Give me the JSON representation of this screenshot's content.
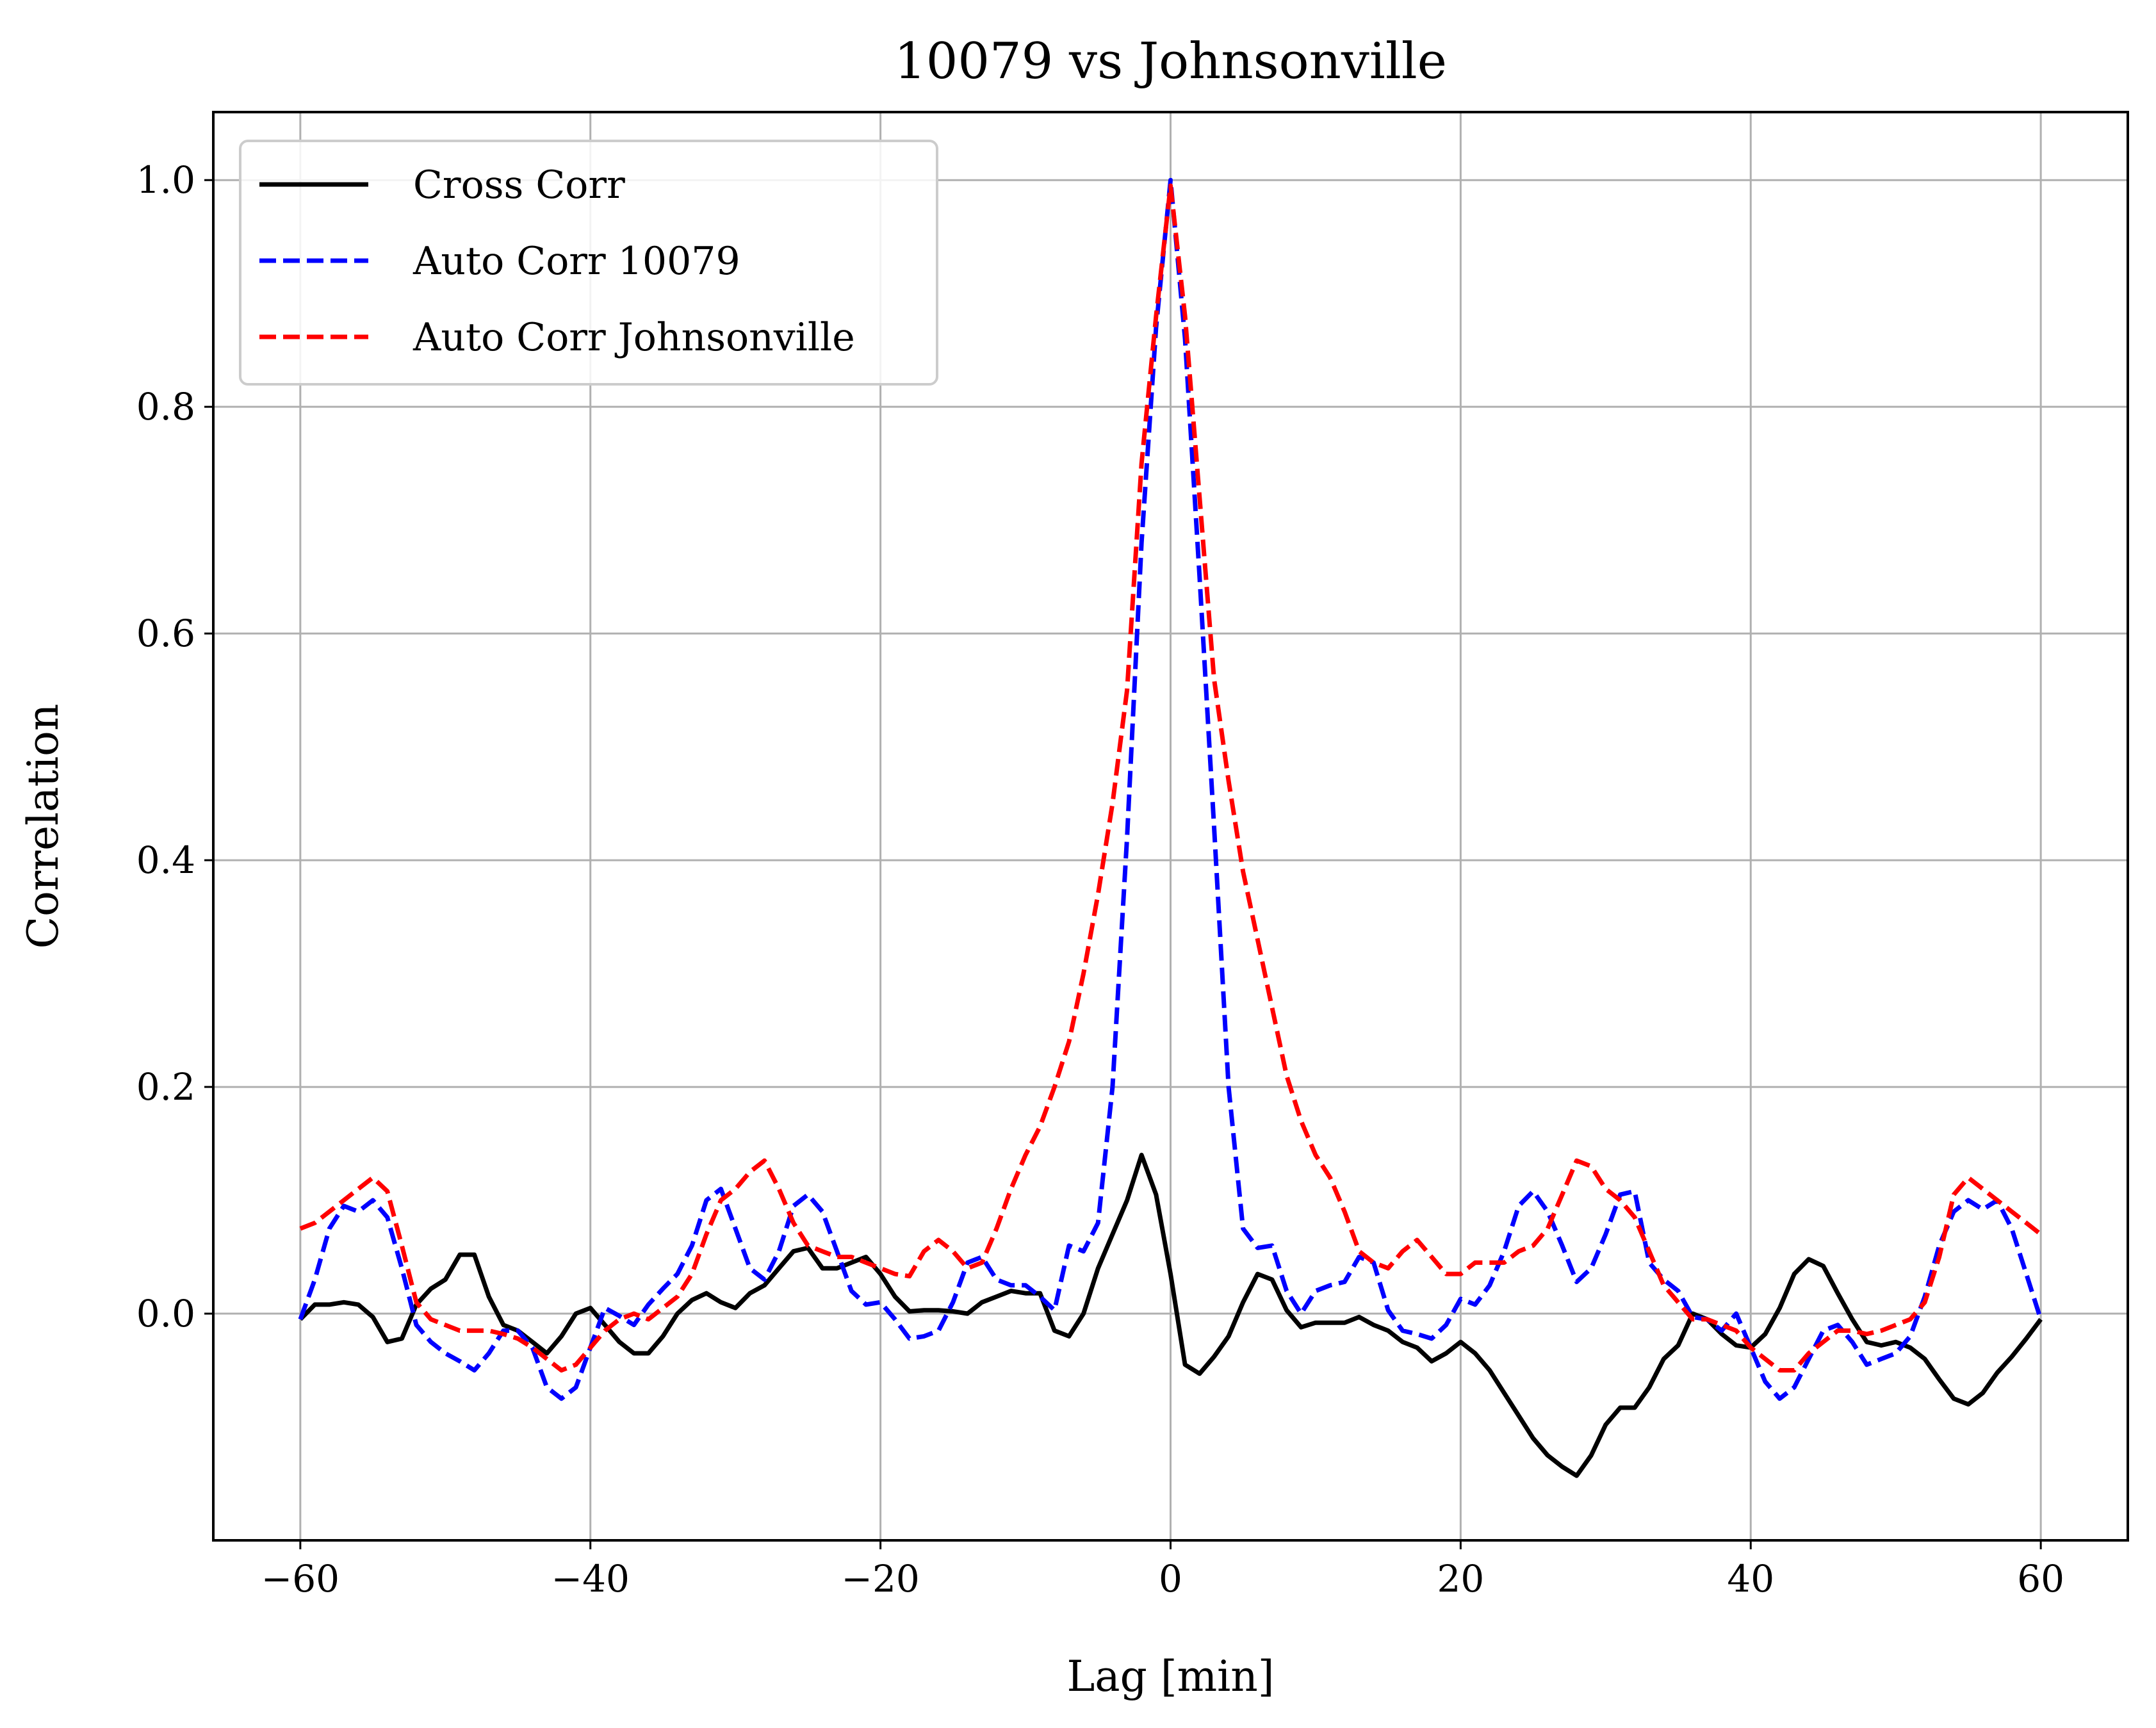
{
  "chart_data": {
    "type": "line",
    "title": "10079 vs Johnsonville",
    "xlabel": "Lag [min]",
    "ylabel": "Correlation",
    "xlim": [
      -66,
      66
    ],
    "ylim": [
      -0.2,
      1.06
    ],
    "xticks": [
      -60,
      -40,
      -20,
      0,
      20,
      40,
      60
    ],
    "xtick_labels": [
      "−60",
      "−40",
      "−20",
      "0",
      "20",
      "40",
      "60"
    ],
    "yticks": [
      0.0,
      0.2,
      0.4,
      0.6,
      0.8,
      1.0
    ],
    "ytick_labels": [
      "0.0",
      "0.2",
      "0.4",
      "0.6",
      "0.8",
      "1.0"
    ],
    "grid": true,
    "legend_position": "upper-left",
    "x": [
      -60,
      -59,
      -58,
      -57,
      -56,
      -55,
      -54,
      -53,
      -52,
      -51,
      -50,
      -49,
      -48,
      -47,
      -46,
      -45,
      -44,
      -43,
      -42,
      -41,
      -40,
      -39,
      -38,
      -37,
      -36,
      -35,
      -34,
      -33,
      -32,
      -31,
      -30,
      -29,
      -28,
      -27,
      -26,
      -25,
      -24,
      -23,
      -22,
      -21,
      -20,
      -19,
      -18,
      -17,
      -16,
      -15,
      -14,
      -13,
      -12,
      -11,
      -10,
      -9,
      -8,
      -7,
      -6,
      -5,
      -4,
      -3,
      -2,
      -1,
      0,
      1,
      2,
      3,
      4,
      5,
      6,
      7,
      8,
      9,
      10,
      11,
      12,
      13,
      14,
      15,
      16,
      17,
      18,
      19,
      20,
      21,
      22,
      23,
      24,
      25,
      26,
      27,
      28,
      29,
      30,
      31,
      32,
      33,
      34,
      35,
      36,
      37,
      38,
      39,
      40,
      41,
      42,
      43,
      44,
      45,
      46,
      47,
      48,
      49,
      50,
      51,
      52,
      53,
      54,
      55,
      56,
      57,
      58,
      59,
      60
    ],
    "series": [
      {
        "name": "Cross Corr",
        "color": "#000000",
        "style": "solid",
        "values": [
          -0.005,
          0.008,
          0.008,
          0.01,
          0.008,
          -0.003,
          -0.025,
          -0.022,
          0.008,
          0.022,
          0.03,
          0.052,
          0.052,
          0.015,
          -0.01,
          -0.015,
          -0.025,
          -0.035,
          -0.02,
          0.0,
          0.005,
          -0.01,
          -0.025,
          -0.035,
          -0.035,
          -0.02,
          0.0,
          0.012,
          0.018,
          0.01,
          0.005,
          0.018,
          0.025,
          0.04,
          0.055,
          0.058,
          0.04,
          0.04,
          0.045,
          0.05,
          0.035,
          0.015,
          0.002,
          0.003,
          0.003,
          0.002,
          0.0,
          0.01,
          0.015,
          0.02,
          0.018,
          0.018,
          -0.015,
          -0.02,
          0.0,
          0.04,
          0.07,
          0.1,
          0.14,
          0.105,
          0.035,
          -0.045,
          -0.053,
          -0.038,
          -0.02,
          0.01,
          0.035,
          0.03,
          0.003,
          -0.012,
          -0.008,
          -0.008,
          -0.008,
          -0.003,
          -0.01,
          -0.015,
          -0.025,
          -0.03,
          -0.042,
          -0.035,
          -0.025,
          -0.035,
          -0.05,
          -0.07,
          -0.09,
          -0.11,
          -0.125,
          -0.135,
          -0.143,
          -0.125,
          -0.098,
          -0.083,
          -0.083,
          -0.065,
          -0.04,
          -0.028,
          0.0,
          -0.005,
          -0.018,
          -0.028,
          -0.03,
          -0.018,
          0.005,
          0.035,
          0.048,
          0.042,
          0.018,
          -0.005,
          -0.025,
          -0.028,
          -0.025,
          -0.03,
          -0.04,
          -0.058,
          -0.075,
          -0.08,
          -0.07,
          -0.052,
          -0.038,
          -0.022,
          -0.005
        ]
      },
      {
        "name": "Auto Corr 10079",
        "color": "#0000ff",
        "style": "dashed",
        "values": [
          -0.005,
          0.03,
          0.075,
          0.095,
          0.09,
          0.1,
          0.085,
          0.04,
          -0.01,
          -0.025,
          -0.035,
          -0.042,
          -0.05,
          -0.035,
          -0.015,
          -0.015,
          -0.03,
          -0.065,
          -0.075,
          -0.065,
          -0.03,
          0.005,
          -0.002,
          -0.01,
          0.008,
          0.022,
          0.035,
          0.06,
          0.1,
          0.11,
          0.075,
          0.04,
          0.03,
          0.055,
          0.095,
          0.105,
          0.09,
          0.055,
          0.02,
          0.008,
          0.01,
          -0.005,
          -0.022,
          -0.02,
          -0.015,
          0.01,
          0.045,
          0.05,
          0.03,
          0.025,
          0.025,
          0.015,
          0.003,
          0.06,
          0.055,
          0.08,
          0.2,
          0.42,
          0.68,
          0.87,
          1.0,
          0.86,
          0.65,
          0.43,
          0.2,
          0.075,
          0.058,
          0.06,
          0.02,
          0.0,
          0.02,
          0.025,
          0.028,
          0.05,
          0.045,
          0.003,
          -0.015,
          -0.018,
          -0.022,
          -0.01,
          0.013,
          0.008,
          0.025,
          0.055,
          0.095,
          0.108,
          0.09,
          0.06,
          0.028,
          0.04,
          0.07,
          0.105,
          0.108,
          0.045,
          0.03,
          0.02,
          -0.003,
          -0.005,
          -0.015,
          0.0,
          -0.03,
          -0.06,
          -0.075,
          -0.065,
          -0.04,
          -0.015,
          -0.01,
          -0.025,
          -0.045,
          -0.04,
          -0.035,
          -0.02,
          0.015,
          0.06,
          0.09,
          0.1,
          0.092,
          0.1,
          0.075,
          0.035,
          -0.005
        ]
      },
      {
        "name": "Auto Corr Johnsonville",
        "color": "#ff0000",
        "style": "dashed",
        "values": [
          0.075,
          0.08,
          0.09,
          0.1,
          0.11,
          0.12,
          0.108,
          0.06,
          0.01,
          -0.005,
          -0.01,
          -0.015,
          -0.015,
          -0.015,
          -0.018,
          -0.022,
          -0.03,
          -0.04,
          -0.05,
          -0.045,
          -0.03,
          -0.015,
          -0.005,
          0.0,
          -0.005,
          0.005,
          0.015,
          0.035,
          0.07,
          0.1,
          0.11,
          0.125,
          0.135,
          0.11,
          0.08,
          0.06,
          0.055,
          0.05,
          0.05,
          0.045,
          0.04,
          0.035,
          0.033,
          0.055,
          0.065,
          0.055,
          0.04,
          0.045,
          0.075,
          0.11,
          0.14,
          0.165,
          0.2,
          0.24,
          0.3,
          0.37,
          0.45,
          0.55,
          0.75,
          0.88,
          0.995,
          0.88,
          0.72,
          0.56,
          0.47,
          0.39,
          0.33,
          0.27,
          0.21,
          0.17,
          0.14,
          0.12,
          0.09,
          0.055,
          0.045,
          0.04,
          0.055,
          0.065,
          0.05,
          0.035,
          0.035,
          0.045,
          0.045,
          0.045,
          0.055,
          0.06,
          0.075,
          0.105,
          0.135,
          0.13,
          0.11,
          0.1,
          0.085,
          0.055,
          0.025,
          0.01,
          -0.005,
          -0.005,
          -0.01,
          -0.015,
          -0.03,
          -0.04,
          -0.05,
          -0.05,
          -0.035,
          -0.025,
          -0.015,
          -0.015,
          -0.018,
          -0.015,
          -0.01,
          -0.005,
          0.01,
          0.05,
          0.105,
          0.12,
          0.11,
          0.1,
          0.09,
          0.08,
          0.07
        ]
      }
    ]
  }
}
